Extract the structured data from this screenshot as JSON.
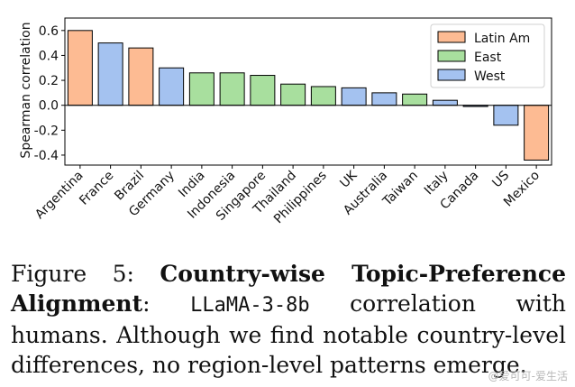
{
  "chart_data": {
    "type": "bar",
    "ylabel": "Spearman correlation",
    "ylim": [
      -0.48,
      0.7
    ],
    "yticks": [
      0.6,
      0.4,
      0.2,
      0.0,
      -0.2,
      -0.4
    ],
    "ytick_labels": [
      "0.6",
      "0.4",
      "0.2",
      "0.0",
      "-0.2",
      "-0.4"
    ],
    "grid": false,
    "legend_position": "top-right",
    "legend": [
      {
        "name": "Latin Am",
        "color": "#fdbb93"
      },
      {
        "name": "East",
        "color": "#a8df9e"
      },
      {
        "name": "West",
        "color": "#a4c2f0"
      }
    ],
    "categories": [
      "Argentina",
      "France",
      "Brazil",
      "Germany",
      "India",
      "Indonesia",
      "Singapore",
      "Thailand",
      "Philippines",
      "UK",
      "Australia",
      "Taiwan",
      "Italy",
      "Canada",
      "US",
      "Mexico"
    ],
    "values": [
      0.6,
      0.5,
      0.46,
      0.3,
      0.26,
      0.26,
      0.24,
      0.17,
      0.15,
      0.14,
      0.1,
      0.09,
      0.04,
      -0.01,
      -0.16,
      -0.44
    ],
    "regions": [
      "Latin Am",
      "West",
      "Latin Am",
      "West",
      "East",
      "East",
      "East",
      "East",
      "East",
      "West",
      "West",
      "East",
      "West",
      "West",
      "West",
      "Latin Am"
    ]
  },
  "caption": {
    "prefix": "Figure 5: ",
    "bold": "Country-wise Topic-Preference Alignment",
    "colon": ":",
    "model": "LLaMA-3-8b",
    "rest": " correlation with humans.  Although we find notable country-level differences, no region-level patterns emerge."
  },
  "watermark": "@爱可可-爱生活"
}
